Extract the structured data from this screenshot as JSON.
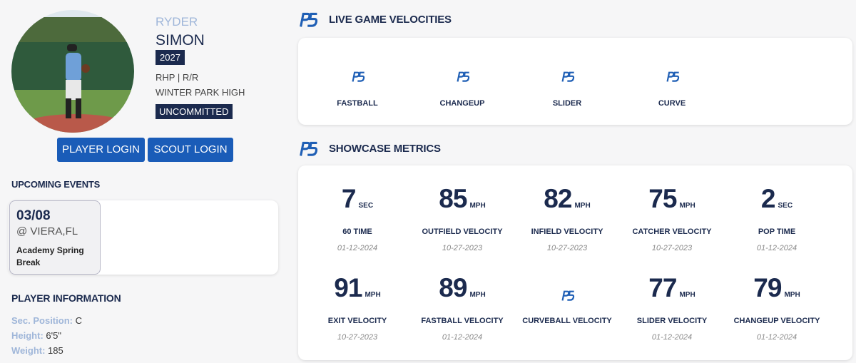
{
  "profile": {
    "first_name": "RYDER",
    "last_name": "SIMON",
    "grad_year": "2027",
    "position_bats": "RHP | R/R",
    "school": "WINTER PARK HIGH",
    "commitment": "UNCOMMITTED"
  },
  "buttons": [
    "PLAYER LOGIN",
    "SCOUT LOGIN"
  ],
  "upcoming_events": {
    "title": "UPCOMING EVENTS",
    "events": [
      {
        "date": "03/08",
        "location": "@ VIERA,FL",
        "name": "Academy Spring Break"
      }
    ]
  },
  "player_information": {
    "title": "PLAYER INFORMATION",
    "fields": [
      {
        "label": "Sec. Position:",
        "value": "C"
      },
      {
        "label": "Height:",
        "value": "6'5\""
      },
      {
        "label": "Weight:",
        "value": "185"
      }
    ]
  },
  "live_game_velocities": {
    "title": "LIVE GAME VELOCITIES",
    "pitches": [
      "FASTBALL",
      "CHANGEUP",
      "SLIDER",
      "CURVE"
    ]
  },
  "showcase_metrics": {
    "title": "SHOWCASE METRICS",
    "metrics": [
      {
        "value": 7,
        "unit": "SEC",
        "label": "60 TIME",
        "date": "01-12-2024"
      },
      {
        "value": 85,
        "unit": "MPH",
        "label": "OUTFIELD VELOCITY",
        "date": "10-27-2023"
      },
      {
        "value": 82,
        "unit": "MPH",
        "label": "INFIELD VELOCITY",
        "date": "10-27-2023"
      },
      {
        "value": 75,
        "unit": "MPH",
        "label": "CATCHER VELOCITY",
        "date": "10-27-2023"
      },
      {
        "value": 2,
        "unit": "SEC",
        "label": "POP TIME",
        "date": "01-12-2024"
      },
      {
        "value": 91,
        "unit": "MPH",
        "label": "EXIT VELOCITY",
        "date": "10-27-2023"
      },
      {
        "value": 89,
        "unit": "MPH",
        "label": "FASTBALL VELOCITY",
        "date": "01-12-2024"
      },
      {
        "label": "CURVEBALL VELOCITY"
      },
      {
        "value": 77,
        "unit": "MPH",
        "label": "SLIDER VELOCITY",
        "date": "01-12-2024"
      },
      {
        "value": 79,
        "unit": "MPH",
        "label": "CHANGEUP VELOCITY",
        "date": "01-12-2024"
      }
    ]
  }
}
